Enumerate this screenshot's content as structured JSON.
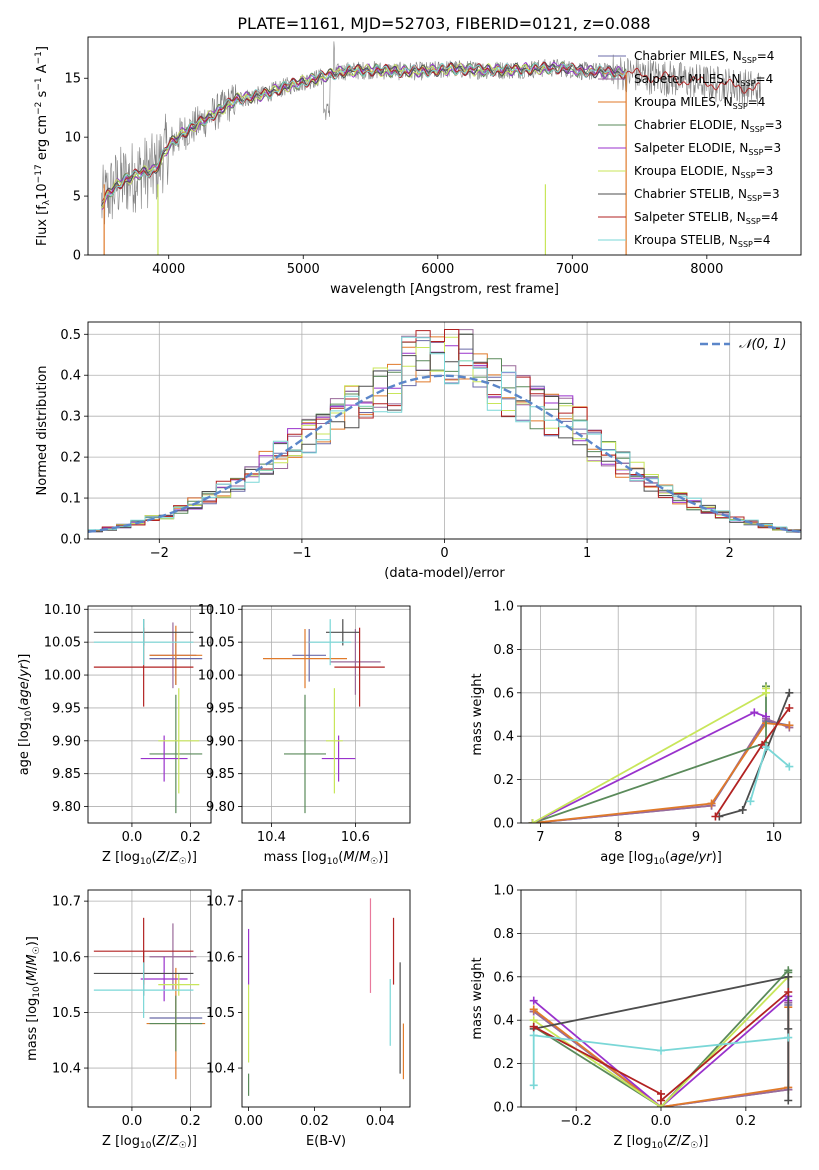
{
  "figure_title": "PLATE=1161, MJD=52703, FIBERID=0121, z=0.088",
  "colors": {
    "Chabrier MILES": "#6b6ba8",
    "Salpeter MILES": "#9a6a9a",
    "Kroupa MILES": "#e07a2a",
    "Chabrier ELODIE": "#5a8a5a",
    "Salpeter ELODIE": "#9932cc",
    "Kroupa ELODIE": "#c8e65a",
    "Chabrier STELIB": "#4d4d4d",
    "Salpeter STELIB": "#b22222",
    "Kroupa STELIB": "#7ad7d7",
    "data": "#808080",
    "normal": "#5b86c9",
    "extra_ebv": "#e8799c"
  },
  "chart_data": [
    {
      "id": "spectrum",
      "type": "line",
      "xlabel": "wavelength [Angstrom, rest frame]",
      "ylabel": "Flux [f_λ 10^-17 erg cm^-2 s^-1 A^-1]",
      "xlim": [
        3400,
        8700
      ],
      "ylim": [
        0,
        18.5
      ],
      "xticks": [
        4000,
        5000,
        6000,
        7000,
        8000
      ],
      "yticks": [
        0,
        5,
        10,
        15
      ],
      "legend_position": "upper right",
      "legend": [
        {
          "name": "Chabrier MILES",
          "sub": "SSP",
          "n": "4"
        },
        {
          "name": "Salpeter MILES",
          "sub": "SSP",
          "n": "4"
        },
        {
          "name": "Kroupa MILES",
          "sub": "SSP",
          "n": "4"
        },
        {
          "name": "Chabrier ELODIE",
          "sub": "SSP",
          "n": "3"
        },
        {
          "name": "Salpeter ELODIE",
          "sub": "SSP",
          "n": "3"
        },
        {
          "name": "Kroupa ELODIE",
          "sub": "SSP",
          "n": "3"
        },
        {
          "name": "Chabrier STELIB",
          "sub": "SSP",
          "n": "3"
        },
        {
          "name": "Salpeter STELIB",
          "sub": "SSP",
          "n": "4"
        },
        {
          "name": "Kroupa STELIB",
          "sub": "SSP",
          "n": "4"
        }
      ],
      "continuum": [
        [
          3500,
          4.3
        ],
        [
          3560,
          5.3
        ],
        [
          3620,
          6
        ],
        [
          3700,
          6.5
        ],
        [
          3800,
          7
        ],
        [
          3900,
          7.2
        ],
        [
          4000,
          9.3
        ],
        [
          4100,
          10.3
        ],
        [
          4200,
          11
        ],
        [
          4300,
          11.7
        ],
        [
          4500,
          13.2
        ],
        [
          4700,
          13.6
        ],
        [
          4900,
          14.4
        ],
        [
          5100,
          15
        ],
        [
          5300,
          15.6
        ],
        [
          5500,
          15.7
        ],
        [
          5700,
          15.6
        ],
        [
          5900,
          15.6
        ],
        [
          6100,
          15.8
        ],
        [
          6300,
          15.7
        ],
        [
          6500,
          15.7
        ],
        [
          6700,
          15.8
        ],
        [
          6900,
          15.9
        ],
        [
          7100,
          15.6
        ],
        [
          7300,
          15.5
        ],
        [
          7500,
          15.3
        ],
        [
          8000,
          14.6
        ],
        [
          8400,
          14.1
        ]
      ],
      "models_end": [
        7400,
        7400,
        7400,
        7400,
        7400,
        6800,
        7400,
        8400,
        7400
      ]
    },
    {
      "id": "residuals",
      "type": "histogram",
      "xlabel": "(data-model)/error",
      "ylabel": "Normed distribution",
      "xlim": [
        -2.5,
        2.5
      ],
      "ylim": [
        0,
        0.53
      ],
      "xticks": [
        -2,
        -1,
        0,
        1,
        2
      ],
      "yticks": [
        0.0,
        0.1,
        0.2,
        0.3,
        0.4,
        0.5
      ],
      "bin_width": 0.1,
      "reference": {
        "name": "𝒩(0, 1)",
        "type": "normal",
        "mu": 0,
        "sigma": 1
      },
      "legend_position": "upper right",
      "grid": true
    },
    {
      "id": "age_vs_Z",
      "type": "errorbar",
      "xlabel": "Z [log10(Z/Z☉)]",
      "ylabel": "age  [log10(age/yr)]",
      "xlim": [
        -0.15,
        0.27
      ],
      "ylim": [
        9.775,
        10.105
      ],
      "xticks": [
        0.0,
        0.2
      ],
      "yticks": [
        9.8,
        9.85,
        9.9,
        9.95,
        10.0,
        10.05,
        10.1
      ],
      "grid": true,
      "points": [
        {
          "model": "Chabrier MILES",
          "x": 0.15,
          "xerr": 0.09,
          "y": 10.025,
          "yerr": 0.04
        },
        {
          "model": "Salpeter MILES",
          "x": 0.14,
          "xerr": 0.08,
          "y": 10.03,
          "yerr": 0.05
        },
        {
          "model": "Kroupa MILES",
          "x": 0.15,
          "xerr": 0.09,
          "y": 10.03,
          "yerr": 0.045
        },
        {
          "model": "Chabrier ELODIE",
          "x": 0.15,
          "xerr": 0.09,
          "y": 9.88,
          "yerr": 0.09
        },
        {
          "model": "Salpeter ELODIE",
          "x": 0.11,
          "xerr": 0.08,
          "y": 9.873,
          "yerr": 0.035
        },
        {
          "model": "Kroupa ELODIE",
          "x": 0.16,
          "xerr": 0.07,
          "y": 9.9,
          "yerr": 0.08
        },
        {
          "model": "Chabrier STELIB",
          "x": 0.04,
          "xerr": 0.17,
          "y": 10.065,
          "yerr": 0.02
        },
        {
          "model": "Salpeter STELIB",
          "x": 0.04,
          "xerr": 0.17,
          "y": 10.012,
          "yerr": 0.06
        },
        {
          "model": "Kroupa STELIB",
          "x": 0.04,
          "xerr": 0.17,
          "y": 10.05,
          "yerr": 0.035
        }
      ]
    },
    {
      "id": "age_vs_mass",
      "type": "errorbar",
      "xlabel": "mass [log10(M/M☉)]",
      "ylabel": "",
      "xlim": [
        10.33,
        10.73
      ],
      "ylim": [
        9.775,
        10.105
      ],
      "xticks": [
        10.4,
        10.6
      ],
      "yticks": [
        9.8,
        9.85,
        9.9,
        9.95,
        10.0,
        10.05,
        10.1
      ],
      "grid": true,
      "points": [
        {
          "model": "Chabrier MILES",
          "x": 10.49,
          "xerr": 0.04,
          "y": 10.03,
          "yerr": 0.04
        },
        {
          "model": "Salpeter MILES",
          "x": 10.6,
          "xerr": 0.06,
          "y": 10.02,
          "yerr": 0.05
        },
        {
          "model": "Kroupa MILES",
          "x": 10.48,
          "xerr": 0.1,
          "y": 10.025,
          "yerr": 0.045
        },
        {
          "model": "Chabrier ELODIE",
          "x": 10.48,
          "xerr": 0.05,
          "y": 9.88,
          "yerr": 0.09
        },
        {
          "model": "Salpeter ELODIE",
          "x": 10.56,
          "xerr": 0.04,
          "y": 9.873,
          "yerr": 0.035
        },
        {
          "model": "Kroupa ELODIE",
          "x": 10.55,
          "xerr": 0.02,
          "y": 9.9,
          "yerr": 0.08
        },
        {
          "model": "Chabrier STELIB",
          "x": 10.57,
          "xerr": 0.04,
          "y": 10.065,
          "yerr": 0.02
        },
        {
          "model": "Salpeter STELIB",
          "x": 10.61,
          "xerr": 0.06,
          "y": 10.012,
          "yerr": 0.06
        },
        {
          "model": "Kroupa STELIB",
          "x": 10.54,
          "xerr": 0.05,
          "y": 10.05,
          "yerr": 0.035
        }
      ]
    },
    {
      "id": "weight_vs_age",
      "type": "line",
      "xlabel": "age  [log10(age/yr)]",
      "ylabel": "mass weight",
      "xlim": [
        6.75,
        10.35
      ],
      "ylim": [
        0,
        1
      ],
      "xticks": [
        7,
        8,
        9,
        10
      ],
      "yticks": [
        0.0,
        0.2,
        0.4,
        0.6,
        0.8,
        1.0
      ],
      "grid": true,
      "series": [
        {
          "model": "Chabrier MILES",
          "x": [
            6.9,
            9.2,
            9.9,
            10.2
          ],
          "y": [
            0.0,
            0.08,
            0.47,
            0.45
          ]
        },
        {
          "model": "Salpeter MILES",
          "x": [
            6.9,
            9.2,
            9.9,
            10.2
          ],
          "y": [
            0.0,
            0.08,
            0.48,
            0.44
          ]
        },
        {
          "model": "Kroupa MILES",
          "x": [
            6.9,
            9.2,
            9.9,
            10.2
          ],
          "y": [
            0.0,
            0.09,
            0.46,
            0.45
          ]
        },
        {
          "model": "Chabrier ELODIE",
          "x": [
            6.9,
            9.9,
            9.9
          ],
          "y": [
            0.0,
            0.37,
            0.63
          ]
        },
        {
          "model": "Salpeter ELODIE",
          "x": [
            6.9,
            9.75,
            9.9
          ],
          "y": [
            0.0,
            0.51,
            0.49
          ]
        },
        {
          "model": "Kroupa ELODIE",
          "x": [
            6.9,
            9.9,
            9.9
          ],
          "y": [
            0.0,
            0.6,
            0.62
          ]
        },
        {
          "model": "Chabrier STELIB",
          "x": [
            9.3,
            9.6,
            10.2
          ],
          "y": [
            0.03,
            0.06,
            0.6
          ]
        },
        {
          "model": "Salpeter STELIB",
          "x": [
            9.25,
            9.85,
            10.2
          ],
          "y": [
            0.03,
            0.36,
            0.53
          ]
        },
        {
          "model": "Kroupa STELIB",
          "x": [
            9.7,
            9.9,
            10.2
          ],
          "y": [
            0.1,
            0.35,
            0.26
          ]
        }
      ]
    },
    {
      "id": "mass_vs_Z",
      "type": "errorbar",
      "xlabel": "Z [log10(Z/Z☉)]",
      "ylabel": "mass [log10(M/M☉)]",
      "xlim": [
        -0.15,
        0.27
      ],
      "ylim": [
        10.33,
        10.72
      ],
      "xticks": [
        0.0,
        0.2
      ],
      "yticks": [
        10.4,
        10.5,
        10.6,
        10.7
      ],
      "grid": true,
      "points": [
        {
          "model": "Chabrier MILES",
          "x": 0.15,
          "xerr": 0.09,
          "y": 10.49,
          "yerr": 0.04
        },
        {
          "model": "Salpeter MILES",
          "x": 0.14,
          "xerr": 0.08,
          "y": 10.6,
          "yerr": 0.06
        },
        {
          "model": "Kroupa MILES",
          "x": 0.15,
          "xerr": 0.1,
          "y": 10.48,
          "yerr": 0.1
        },
        {
          "model": "Chabrier ELODIE",
          "x": 0.15,
          "xerr": 0.09,
          "y": 10.48,
          "yerr": 0.05
        },
        {
          "model": "Salpeter ELODIE",
          "x": 0.11,
          "xerr": 0.08,
          "y": 10.56,
          "yerr": 0.04
        },
        {
          "model": "Kroupa ELODIE",
          "x": 0.16,
          "xerr": 0.07,
          "y": 10.55,
          "yerr": 0.02
        },
        {
          "model": "Chabrier STELIB",
          "x": 0.04,
          "xerr": 0.17,
          "y": 10.57,
          "yerr": 0.04
        },
        {
          "model": "Salpeter STELIB",
          "x": 0.04,
          "xerr": 0.17,
          "y": 10.61,
          "yerr": 0.06
        },
        {
          "model": "Kroupa STELIB",
          "x": 0.04,
          "xerr": 0.17,
          "y": 10.54,
          "yerr": 0.05
        }
      ]
    },
    {
      "id": "mass_vs_ebv",
      "type": "errorbar",
      "xlabel": "E(B-V)",
      "ylabel": "",
      "xlim": [
        -0.002,
        0.049
      ],
      "ylim": [
        10.33,
        10.72
      ],
      "xticks": [
        0.0,
        0.02,
        0.04
      ],
      "yticks": [
        10.4,
        10.5,
        10.6,
        10.7
      ],
      "grid": false,
      "points": [
        {
          "model": "Salpeter ELODIE",
          "x": 0.0,
          "y": 10.6,
          "yerr": 0.05
        },
        {
          "model": "Kroupa ELODIE",
          "x": 0.0,
          "y": 10.48,
          "yerr": 0.07
        },
        {
          "model": "Chabrier ELODIE",
          "x": 0.0,
          "y": 10.37,
          "yerr": 0.02
        },
        {
          "model": "extra",
          "x": 0.037,
          "y": 10.62,
          "yerr": 0.085
        },
        {
          "model": "Salpeter STELIB",
          "x": 0.044,
          "y": 10.61,
          "yerr": 0.06
        },
        {
          "model": "Kroupa STELIB",
          "x": 0.043,
          "y": 10.5,
          "yerr": 0.06
        },
        {
          "model": "Chabrier STELIB",
          "x": 0.046,
          "y": 10.49,
          "yerr": 0.1
        },
        {
          "model": "Kroupa MILES",
          "x": 0.047,
          "y": 10.43,
          "yerr": 0.05
        }
      ]
    },
    {
      "id": "weight_vs_Z",
      "type": "line",
      "xlabel": "Z [log10(Z/Z☉)]",
      "ylabel": "mass weight",
      "xlim": [
        -0.33,
        0.33
      ],
      "ylim": [
        0,
        1
      ],
      "xticks": [
        -0.2,
        0.0,
        0.2
      ],
      "yticks": [
        0.0,
        0.2,
        0.4,
        0.6,
        0.8,
        1.0
      ],
      "grid": true,
      "series": [
        {
          "model": "Chabrier MILES",
          "x": [
            -0.3,
            0.0,
            0.3,
            0.3
          ],
          "y": [
            0.44,
            0.0,
            0.08,
            0.47
          ]
        },
        {
          "model": "Salpeter MILES",
          "x": [
            -0.3,
            0.0,
            0.3,
            0.3
          ],
          "y": [
            0.44,
            0.0,
            0.08,
            0.48
          ]
        },
        {
          "model": "Kroupa MILES",
          "x": [
            -0.3,
            0.0,
            0.3,
            0.3
          ],
          "y": [
            0.45,
            0.0,
            0.09,
            0.46
          ]
        },
        {
          "model": "Chabrier ELODIE",
          "x": [
            -0.3,
            0.0,
            0.3,
            0.3
          ],
          "y": [
            0.37,
            0.0,
            0.63,
            0.62
          ]
        },
        {
          "model": "Salpeter ELODIE",
          "x": [
            -0.3,
            0.0,
            0.3,
            0.3
          ],
          "y": [
            0.49,
            0.0,
            0.51,
            0.49
          ]
        },
        {
          "model": "Kroupa ELODIE",
          "x": [
            -0.3,
            0.0,
            0.3,
            0.3
          ],
          "y": [
            0.4,
            0.0,
            0.6,
            0.6
          ]
        },
        {
          "model": "Chabrier STELIB",
          "x": [
            -0.3,
            0.3,
            0.3,
            0.3
          ],
          "y": [
            0.36,
            0.6,
            0.03,
            0.36
          ]
        },
        {
          "model": "Salpeter STELIB",
          "x": [
            -0.3,
            0.0,
            0.0,
            0.3
          ],
          "y": [
            0.37,
            0.06,
            0.03,
            0.53
          ]
        },
        {
          "model": "Kroupa STELIB",
          "x": [
            -0.3,
            -0.3,
            0.0,
            0.3
          ],
          "y": [
            0.1,
            0.33,
            0.26,
            0.32
          ]
        }
      ]
    }
  ]
}
